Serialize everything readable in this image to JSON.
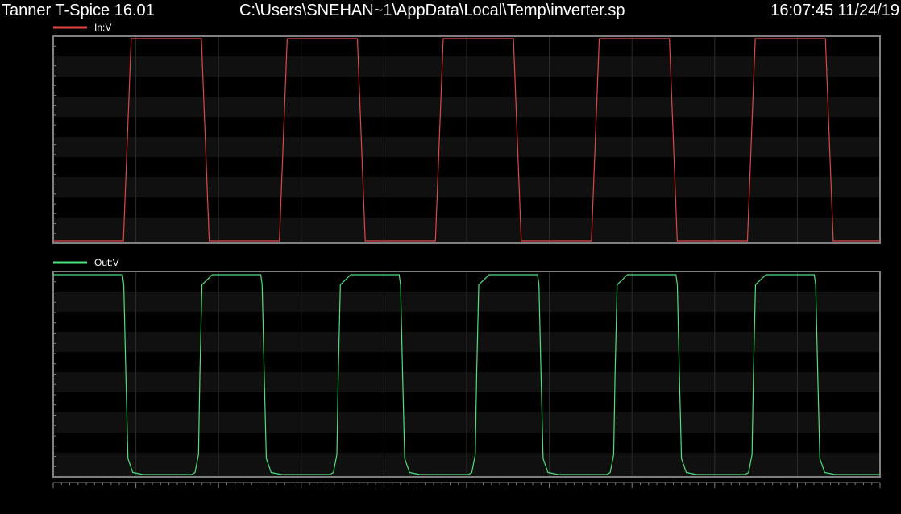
{
  "header": {
    "app_title": "Tanner T-Spice 16.01",
    "file_path": "C:\\Users\\SNEHAN~1\\AppData\\Local\\Temp\\inverter.sp",
    "timestamp": "16:07:45 11/24/19"
  },
  "colors": {
    "background": "#000000",
    "panel_background": "#101010",
    "frame": "#808080",
    "grid": "#2c2c2c",
    "in_trace": "#e04646",
    "out_trace": "#4ee07e"
  },
  "chart_data": [
    {
      "type": "line",
      "title": "",
      "xlabel": "",
      "ylabel": "",
      "grid": true,
      "legend_position": "top-left",
      "series": [
        {
          "name": "In:V",
          "color": "#e04646",
          "x": [
            0,
            0.9,
            1.0,
            1.9,
            2.0,
            2.9,
            3.0,
            3.9,
            4.0,
            4.9,
            5.0,
            5.9,
            6.0,
            6.9,
            7.0,
            7.9,
            8.0,
            8.9,
            9.0,
            9.9,
            10.0,
            10.6
          ],
          "values": [
            0,
            0,
            1,
            1,
            0,
            0,
            1,
            1,
            0,
            0,
            1,
            1,
            0,
            0,
            1,
            1,
            0,
            0,
            1,
            1,
            0,
            0
          ]
        }
      ]
    },
    {
      "type": "line",
      "title": "",
      "xlabel": "",
      "ylabel": "",
      "grid": true,
      "legend_position": "top-left",
      "series": [
        {
          "name": "Out:V",
          "color": "#4ee07e",
          "x": [
            0,
            1.0,
            1.02,
            1.05,
            1.08,
            1.15,
            1.3,
            2.0,
            2.05,
            2.1,
            2.12,
            2.15,
            2.3,
            3.0,
            3.02,
            3.05,
            3.08,
            3.15,
            3.3,
            4.0,
            4.05,
            4.1,
            4.12,
            4.15,
            4.3,
            5.0,
            5.02,
            5.05,
            5.08,
            5.15,
            5.3,
            6.0,
            6.05,
            6.1,
            6.12,
            6.15,
            6.3,
            7.0,
            7.02,
            7.05,
            7.08,
            7.15,
            7.3,
            8.0,
            8.05,
            8.1,
            8.12,
            8.15,
            8.3,
            9.0,
            9.02,
            9.05,
            9.08,
            9.15,
            9.3,
            10.0,
            10.05,
            10.1,
            10.12,
            10.15,
            10.3,
            11.0,
            11.02,
            11.05,
            11.08,
            11.15,
            11.3,
            11.95
          ],
          "values": [
            1,
            1,
            0.95,
            0.5,
            0.08,
            0.01,
            0,
            0,
            0.01,
            0.1,
            0.5,
            0.95,
            1,
            1,
            0.95,
            0.5,
            0.08,
            0.01,
            0,
            0,
            0.01,
            0.1,
            0.5,
            0.95,
            1,
            1,
            0.95,
            0.5,
            0.08,
            0.01,
            0,
            0,
            0.01,
            0.1,
            0.5,
            0.95,
            1,
            1,
            0.95,
            0.5,
            0.08,
            0.01,
            0,
            0,
            0.01,
            0.1,
            0.5,
            0.95,
            1,
            1,
            0.95,
            0.5,
            0.08,
            0.01,
            0,
            0,
            0.01,
            0.1,
            0.5,
            0.95,
            1,
            1,
            0.95,
            0.5,
            0.08,
            0.01,
            0,
            0
          ]
        }
      ]
    }
  ]
}
